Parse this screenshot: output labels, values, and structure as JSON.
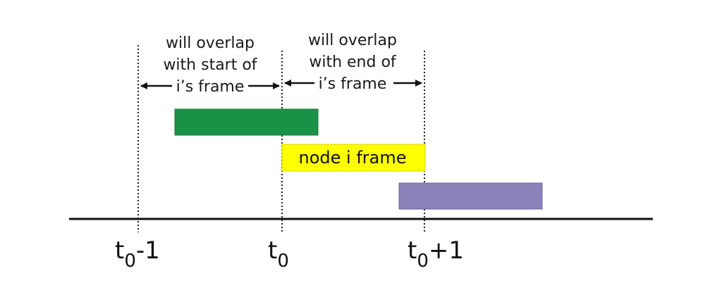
{
  "regions": {
    "left": {
      "line1": "will overlap",
      "line2": "with start of",
      "line3": "i’s frame"
    },
    "right": {
      "line1": "will overlap",
      "line2": "with end of",
      "line3": "i’s frame"
    }
  },
  "frames": {
    "previous": {
      "color": "#1a9146"
    },
    "node": {
      "label": "node i frame",
      "color": "#ffff00"
    },
    "next": {
      "color": "#8b82ba"
    }
  },
  "timeline": {
    "ticks": [
      {
        "base": "t",
        "sub": "0",
        "suffix": "-1"
      },
      {
        "base": "t",
        "sub": "0",
        "suffix": ""
      },
      {
        "base": "t",
        "sub": "0",
        "suffix": "+1"
      }
    ]
  }
}
